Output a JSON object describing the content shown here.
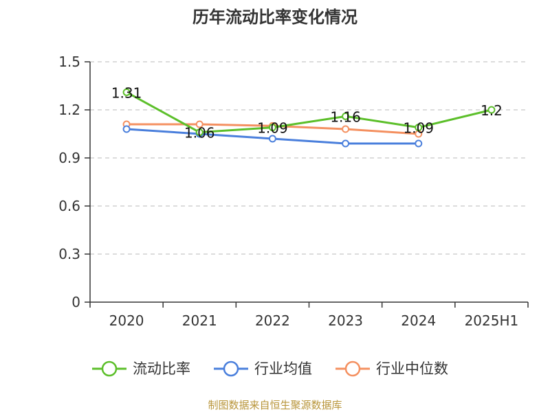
{
  "source_text": "制图数据来自恒生聚源数据库",
  "colors": {
    "series_1": "#5cbf2a",
    "series_2": "#4a7fdc",
    "series_3": "#f49060",
    "grid": "#c8c8c8",
    "axis": "#333333",
    "source": "#b8953a"
  },
  "chart_data": {
    "type": "line",
    "title": "历年流动比率变化情况",
    "xlabel": "",
    "ylabel": "",
    "categories": [
      "2020",
      "2021",
      "2022",
      "2023",
      "2024",
      "2025H1"
    ],
    "yticks": [
      "0",
      "0.3",
      "0.6",
      "0.9",
      "1.2",
      "1.5"
    ],
    "ylim": [
      0,
      1.5
    ],
    "grid": true,
    "legend_position": "bottom",
    "series": [
      {
        "name": "流动比率",
        "values": [
          1.31,
          1.06,
          1.09,
          1.16,
          1.09,
          1.2
        ],
        "labels": [
          "1.31",
          "1.06",
          "1.09",
          "1.16",
          "1.09",
          "1.2"
        ]
      },
      {
        "name": "行业均值",
        "values": [
          1.08,
          1.05,
          1.02,
          0.99,
          0.99,
          null
        ]
      },
      {
        "name": "行业中位数",
        "values": [
          1.11,
          1.11,
          1.1,
          1.08,
          1.05,
          null
        ]
      }
    ]
  }
}
